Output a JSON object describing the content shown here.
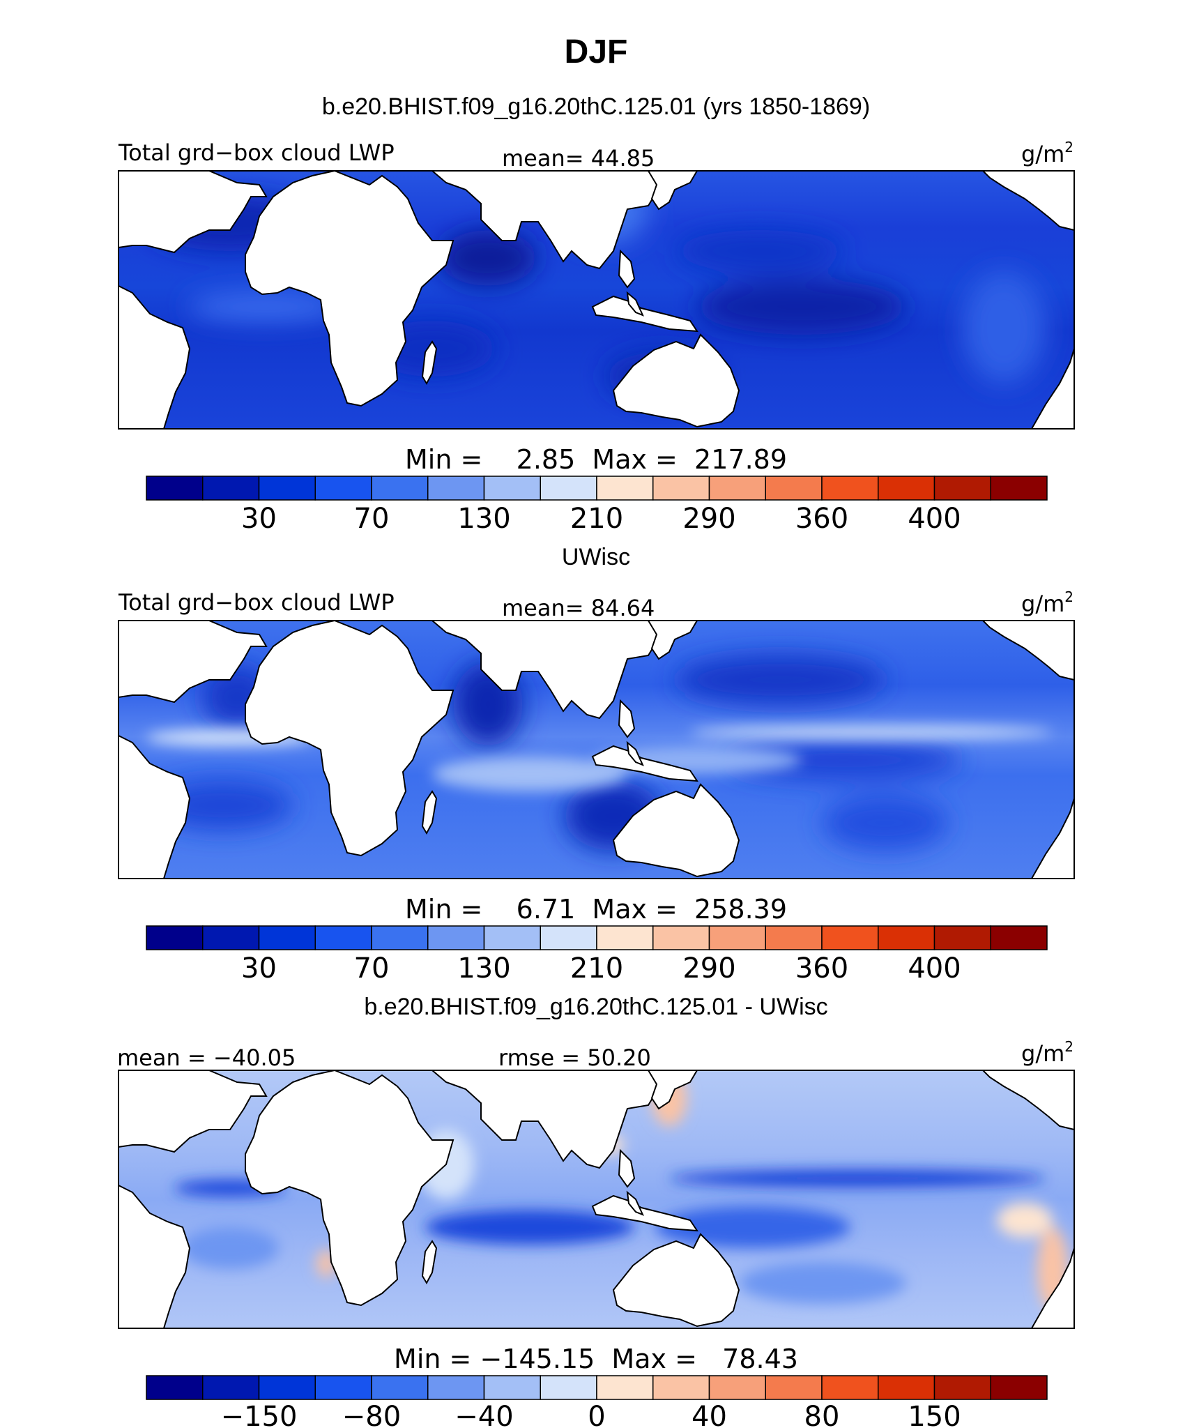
{
  "title": "DJF",
  "chart_data": [
    {
      "type": "heatmap",
      "heading": "b.e20.BHIST.f09_g16.20thC.125.01 (yrs 1850-1869)",
      "left_label": "Total grd−box cloud LWP",
      "center_label": "mean=  44.85",
      "units_base": "g/m",
      "units_exp": "2",
      "minmax": "Min =    2.85  Max =  217.89",
      "colorbar_ticks": [
        "30",
        "70",
        "130",
        "210",
        "290",
        "360",
        "400"
      ],
      "colorbar_colors": [
        "#00008b",
        "#0018b0",
        "#0035d8",
        "#1854ef",
        "#3a72f0",
        "#6d96f2",
        "#a3bff6",
        "#d4e3fa",
        "#fde4d0",
        "#fac3a5",
        "#f7a07a",
        "#f47b4d",
        "#f0521e",
        "#da3005",
        "#b01a02",
        "#8b0000"
      ],
      "field_colors": [
        "#1a3fd8",
        "#0f2fcb",
        "#2655e3",
        "#153ad4",
        "#0a26b6"
      ]
    },
    {
      "type": "heatmap",
      "heading": "UWisc",
      "left_label": "Total grd−box cloud LWP",
      "center_label": "mean=  84.64",
      "units_base": "g/m",
      "units_exp": "2",
      "minmax": "Min =    6.71  Max =  258.39",
      "colorbar_ticks": [
        "30",
        "70",
        "130",
        "210",
        "290",
        "360",
        "400"
      ],
      "colorbar_colors": [
        "#00008b",
        "#0018b0",
        "#0035d8",
        "#1854ef",
        "#3a72f0",
        "#6d96f2",
        "#a3bff6",
        "#d4e3fa",
        "#fde4d0",
        "#fac3a5",
        "#f7a07a",
        "#f47b4d",
        "#f0521e",
        "#da3005",
        "#b01a02",
        "#8b0000"
      ],
      "field_colors": [
        "#3a6ff0",
        "#2757e6",
        "#6d96f2",
        "#1f4bdf",
        "#4c7ff0"
      ]
    },
    {
      "type": "heatmap",
      "heading": "b.e20.BHIST.f09_g16.20thC.125.01 - UWisc",
      "left_label": "mean = −40.05",
      "center_label": "rmse =  50.20",
      "units_base": "g/m",
      "units_exp": "2",
      "minmax": "Min = −145.15  Max =   78.43",
      "colorbar_ticks": [
        "−150",
        "−80",
        "−40",
        "0",
        "40",
        "80",
        "150"
      ],
      "colorbar_colors": [
        "#00008b",
        "#0018b0",
        "#0035d8",
        "#1854ef",
        "#3a72f0",
        "#6d96f2",
        "#a3bff6",
        "#d4e3fa",
        "#fde4d0",
        "#fac3a5",
        "#f7a07a",
        "#f47b4d",
        "#f0521e",
        "#da3005",
        "#b01a02",
        "#8b0000"
      ],
      "field_colors": [
        "#a3bff6",
        "#8aaaf4",
        "#c2d6f8",
        "#6d96f2",
        "#b8cdf7"
      ]
    }
  ]
}
